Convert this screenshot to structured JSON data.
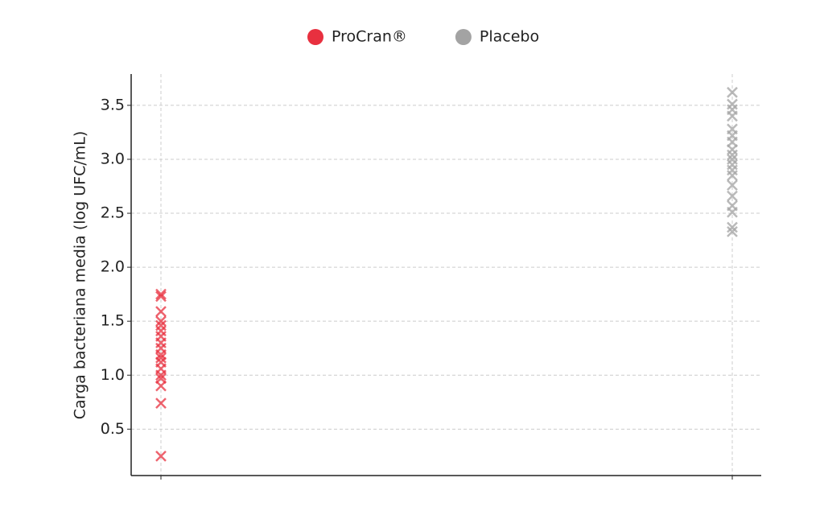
{
  "chart_data": {
    "type": "strip",
    "y_label": "Carga bacteriana media (log UFC/mL)",
    "categories": [
      null,
      null
    ],
    "series": [
      {
        "name": "ProCran®",
        "color": "#e8303f",
        "values": [
          [
            0.25,
            0.74,
            0.9,
            0.97,
            1.0,
            1.06,
            1.12,
            1.16,
            1.19,
            1.25,
            1.3,
            1.36,
            1.41,
            1.46,
            1.5,
            1.59,
            1.73,
            1.75
          ],
          null
        ]
      },
      {
        "name": "Placebo",
        "color": "#a3a3a3",
        "values": [
          null,
          [
            2.33,
            2.37,
            2.51,
            2.57,
            2.66,
            2.76,
            2.85,
            2.9,
            2.95,
            3.0,
            3.04,
            3.09,
            3.16,
            3.22,
            3.28,
            3.4,
            3.46,
            3.51,
            3.62
          ]
        ]
      }
    ],
    "ylim": [
      0.07,
      3.79
    ],
    "yticks": [
      0.5,
      {
        "value": 1,
        "label": "1.0"
      },
      1.5,
      {
        "value": 2,
        "label": "2.0"
      },
      2.5,
      {
        "value": 3,
        "label": "3.0"
      },
      3.5
    ],
    "grid": true,
    "legend": "top"
  }
}
